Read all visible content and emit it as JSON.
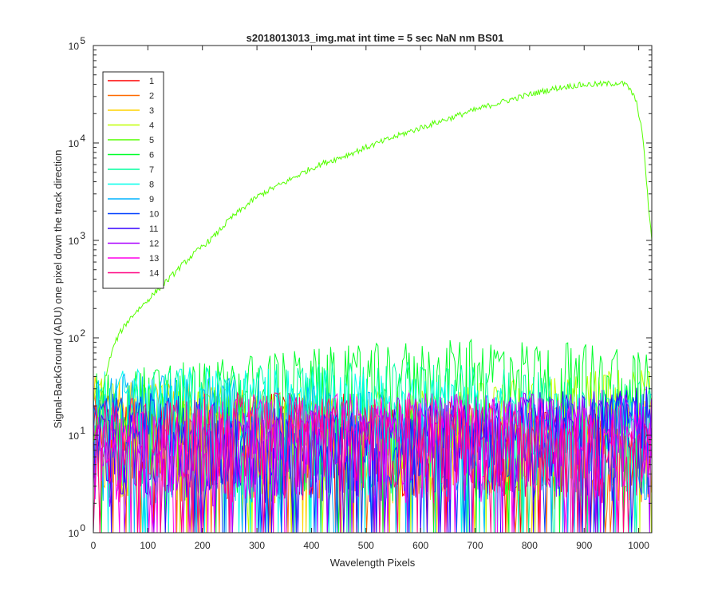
{
  "chart_data": {
    "type": "line",
    "title": "s2018013013_img.mat int time = 5 sec  NaN nm BS01",
    "xlabel": "Wavelength Pixels",
    "ylabel": "Signal-BackGround (ADU) one pixel down the track direction",
    "xlim": [
      0,
      1024
    ],
    "ylim": [
      1,
      100000
    ],
    "yscale": "log",
    "x_ticks": [
      0,
      100,
      200,
      300,
      400,
      500,
      600,
      700,
      800,
      900,
      1000
    ],
    "y_ticks": [
      {
        "value": 1,
        "base": "10",
        "exp": "0"
      },
      {
        "value": 10,
        "base": "10",
        "exp": "1"
      },
      {
        "value": 100,
        "base": "10",
        "exp": "2"
      },
      {
        "value": 1000,
        "base": "10",
        "exp": "3"
      },
      {
        "value": 10000,
        "base": "10",
        "exp": "4"
      },
      {
        "value": 100000,
        "base": "10",
        "exp": "5"
      }
    ],
    "grid": false,
    "legend_position": "top-left",
    "series": [
      {
        "name": "1",
        "color": "#ff0000",
        "level": 12
      },
      {
        "name": "2",
        "color": "#ff6a00",
        "level": 12
      },
      {
        "name": "3",
        "color": "#ffd400",
        "level": 18
      },
      {
        "name": "4",
        "color": "#c0ff00",
        "level": 25
      },
      {
        "name": "5",
        "color": "#55ff00",
        "level": null,
        "x": [
          0,
          10,
          20,
          30,
          40,
          50,
          60,
          70,
          80,
          90,
          100,
          120,
          140,
          160,
          180,
          200,
          220,
          250,
          275,
          300,
          325,
          350,
          375,
          400,
          425,
          450,
          475,
          500,
          525,
          550,
          575,
          600,
          625,
          650,
          675,
          700,
          725,
          750,
          775,
          800,
          825,
          850,
          875,
          900,
          925,
          950,
          962,
          975,
          985,
          995,
          1005,
          1012,
          1018,
          1024
        ],
        "y": [
          8,
          18,
          35,
          60,
          90,
          115,
          140,
          165,
          190,
          215,
          245,
          320,
          410,
          540,
          690,
          870,
          1080,
          1650,
          2150,
          2800,
          3350,
          3900,
          4650,
          5500,
          6300,
          7000,
          7900,
          9000,
          10100,
          11400,
          12800,
          14300,
          15900,
          17700,
          19700,
          21800,
          24100,
          26400,
          28800,
          31500,
          34000,
          36500,
          38500,
          39500,
          40000,
          40700,
          41500,
          40000,
          35000,
          27000,
          15000,
          6000,
          2200,
          1000
        ]
      },
      {
        "name": "6",
        "color": "#00ff2a",
        "level": 42
      },
      {
        "name": "7",
        "color": "#00ff9f",
        "level": 25
      },
      {
        "name": "8",
        "color": "#00ffea",
        "level": 22
      },
      {
        "name": "9",
        "color": "#00b4ff",
        "level": 20
      },
      {
        "name": "10",
        "color": "#003fff",
        "level": 16
      },
      {
        "name": "11",
        "color": "#3500ff",
        "level": 14
      },
      {
        "name": "12",
        "color": "#aa00ff",
        "level": 12
      },
      {
        "name": "13",
        "color": "#ff00ea",
        "level": 12
      },
      {
        "name": "14",
        "color": "#ff0080",
        "level": 12
      }
    ]
  }
}
